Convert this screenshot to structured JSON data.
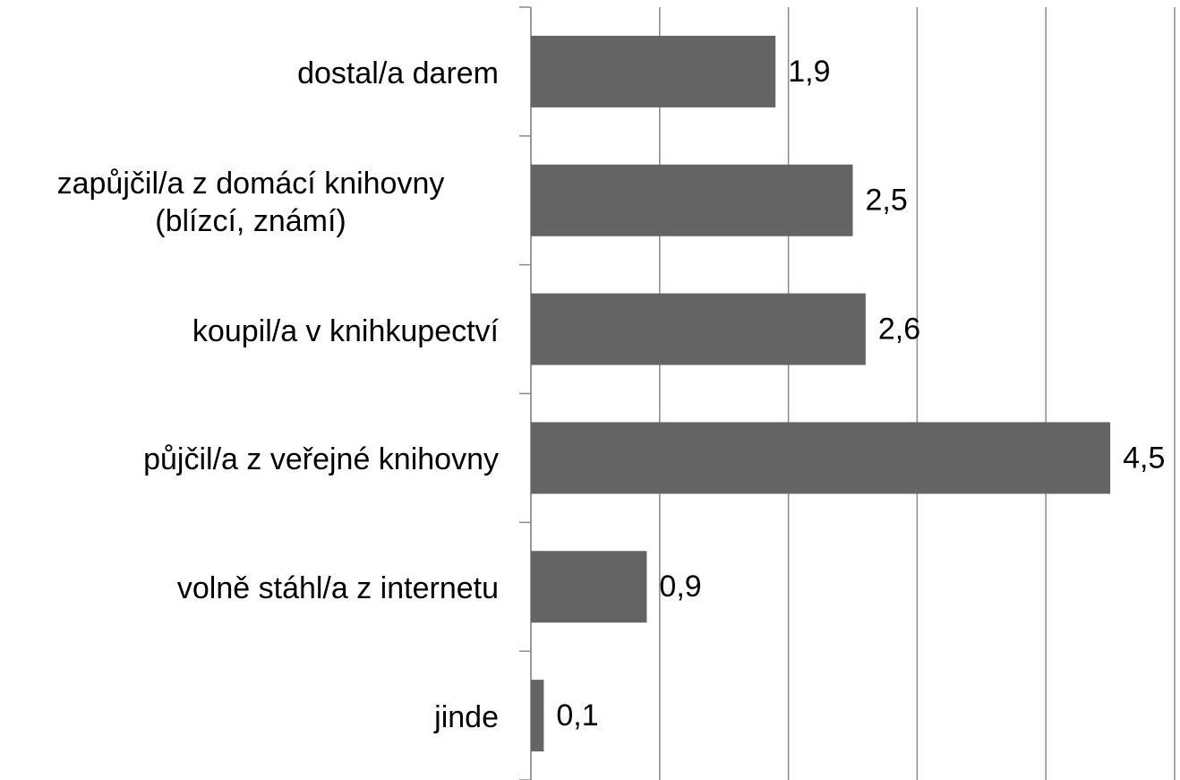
{
  "chart_data": {
    "type": "bar",
    "orientation": "horizontal",
    "categories": [
      "dostal/a darem",
      "zapůjčil/a z domácí knihovny\n(blízcí, známí)",
      "koupil/a  v knihkupectví",
      "půjčil/a z veřejné knihovny",
      "volně stáhl/a z internetu",
      "jinde"
    ],
    "values": [
      1.9,
      2.5,
      2.6,
      4.5,
      0.9,
      0.1
    ],
    "value_labels": [
      "1,9",
      "2,5",
      "2,6",
      "4,5",
      "0,9",
      "0,1"
    ],
    "color": "#646464",
    "xlim": [
      0,
      5
    ],
    "xticks": [
      0,
      1,
      2,
      3,
      4,
      5
    ],
    "grid": true
  }
}
